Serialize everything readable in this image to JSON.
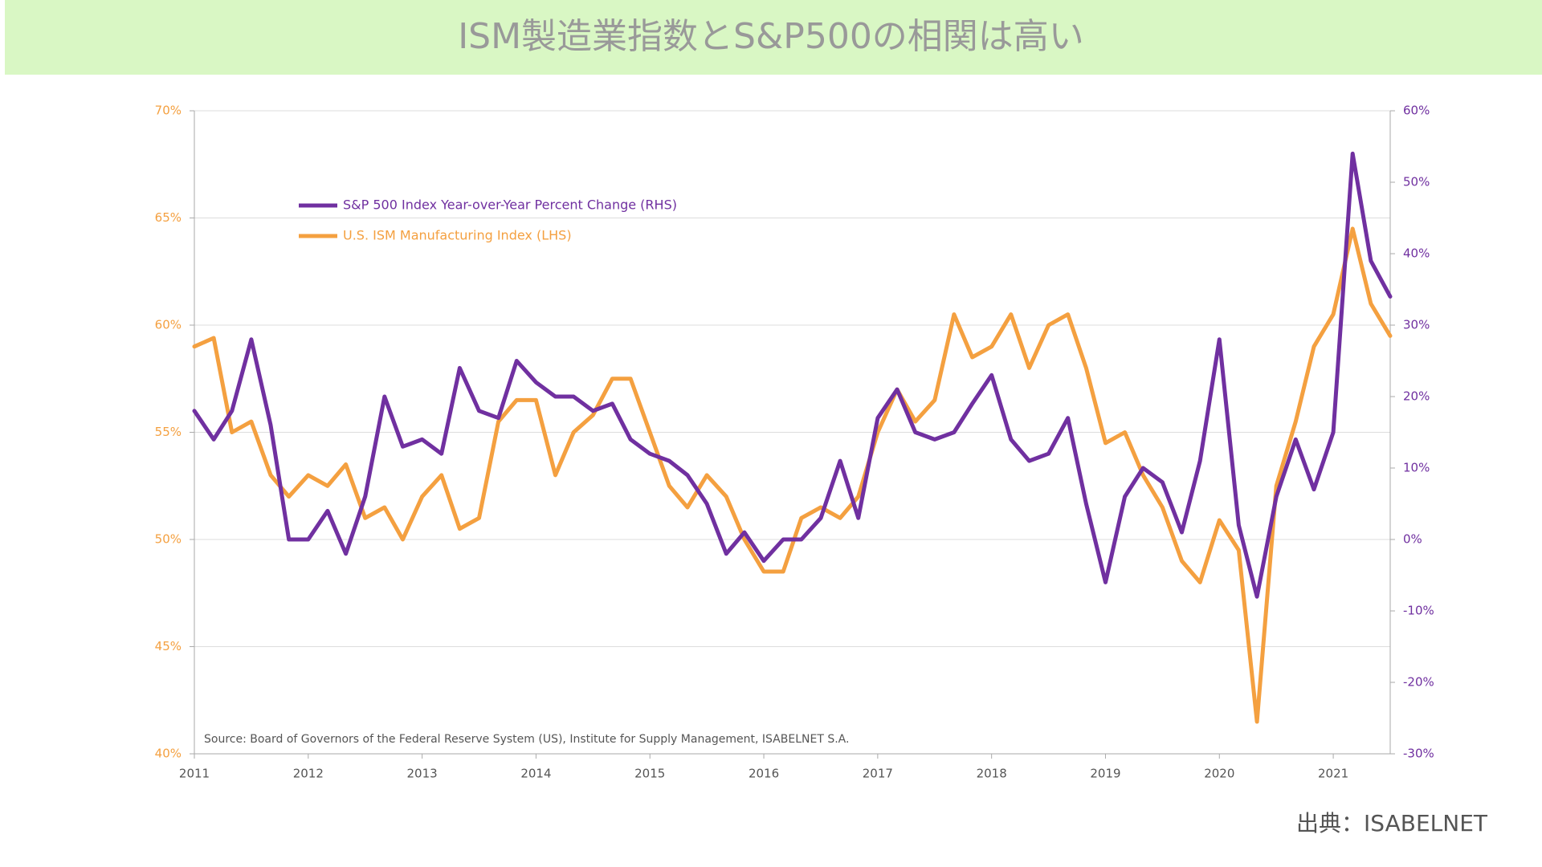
{
  "chart_data": {
    "type": "line",
    "title": "ISM製造業指数とS&P500の相関は高い",
    "source": "Source: Board of Governors of the Federal Reserve System (US), Institute for Supply Management, ISABELNET S.A.",
    "credit": "出典：ISABELNET",
    "x": [
      2011.0,
      2011.17,
      2011.33,
      2011.5,
      2011.67,
      2011.83,
      2012.0,
      2012.17,
      2012.33,
      2012.5,
      2012.67,
      2012.83,
      2013.0,
      2013.17,
      2013.33,
      2013.5,
      2013.67,
      2013.83,
      2014.0,
      2014.17,
      2014.33,
      2014.5,
      2014.67,
      2014.83,
      2015.0,
      2015.17,
      2015.33,
      2015.5,
      2015.67,
      2015.83,
      2016.0,
      2016.17,
      2016.33,
      2016.5,
      2016.67,
      2016.83,
      2017.0,
      2017.17,
      2017.33,
      2017.5,
      2017.67,
      2017.83,
      2018.0,
      2018.17,
      2018.33,
      2018.5,
      2018.67,
      2018.83,
      2019.0,
      2019.17,
      2019.33,
      2019.5,
      2019.67,
      2019.83,
      2020.0,
      2020.17,
      2020.33,
      2020.5,
      2020.67,
      2020.83,
      2021.0,
      2021.17,
      2021.33,
      2021.5
    ],
    "series": [
      {
        "name": "S&P 500 Index Year-over-Year Percent Change (RHS)",
        "color": "#7030a0",
        "axis": "y2",
        "values": [
          18,
          14,
          18,
          28,
          16,
          0,
          0,
          4,
          -2,
          6,
          20,
          13,
          14,
          12,
          24,
          18,
          17,
          25,
          22,
          20,
          20,
          18,
          19,
          14,
          12,
          11,
          9,
          5,
          -2,
          1,
          -3,
          0,
          0,
          3,
          11,
          3,
          17,
          21,
          15,
          14,
          15,
          19,
          23,
          14,
          11,
          12,
          17,
          5,
          -6,
          6,
          10,
          8,
          1,
          11,
          28,
          2,
          -8,
          6,
          14,
          7,
          15,
          54,
          39,
          34
        ]
      },
      {
        "name": "U.S. ISM Manufacturing Index (LHS)",
        "color": "#f4a040",
        "values": [
          59.0,
          59.4,
          55.0,
          55.5,
          53.0,
          52.0,
          53.0,
          52.5,
          53.5,
          51.0,
          51.5,
          50.0,
          52.0,
          53.0,
          50.5,
          51.0,
          55.5,
          56.5,
          56.5,
          53.0,
          55.0,
          55.8,
          57.5,
          57.5,
          55.0,
          52.5,
          51.5,
          53.0,
          52.0,
          50.0,
          48.5,
          48.5,
          51.0,
          51.5,
          51.0,
          52.0,
          55.0,
          57.0,
          55.5,
          56.5,
          60.5,
          58.5,
          59.0,
          60.5,
          58.0,
          60.0,
          60.5,
          58.0,
          54.5,
          55.0,
          53.0,
          51.5,
          49.0,
          48.0,
          50.9,
          49.5,
          41.5,
          52.5,
          55.5,
          59.0,
          60.5,
          64.5,
          61.0,
          59.5
        ]
      }
    ],
    "xlim": [
      2011,
      2021.5
    ],
    "xticks": [
      2011,
      2012,
      2013,
      2014,
      2015,
      2016,
      2017,
      2018,
      2019,
      2020,
      2021
    ],
    "ylim": [
      40,
      70
    ],
    "yticks": [
      {
        "value": 40,
        "label": "40%"
      },
      {
        "value": 45,
        "label": "45%"
      },
      {
        "value": 50,
        "label": "50%"
      },
      {
        "value": 55,
        "label": "55%"
      },
      {
        "value": 60,
        "label": "60%"
      },
      {
        "value": 65,
        "label": "65%"
      },
      {
        "value": 70,
        "label": "70%"
      }
    ],
    "y2lim": [
      -30,
      60
    ],
    "y2ticks": [
      {
        "value": -30,
        "label": "-30%"
      },
      {
        "value": -20,
        "label": "-20%"
      },
      {
        "value": -10,
        "label": "-10%"
      },
      {
        "value": 0,
        "label": "0%"
      },
      {
        "value": 10,
        "label": "10%"
      },
      {
        "value": 20,
        "label": "20%"
      },
      {
        "value": 30,
        "label": "30%"
      },
      {
        "value": 40,
        "label": "40%"
      },
      {
        "value": 50,
        "label": "50%"
      },
      {
        "value": 60,
        "label": "60%"
      }
    ],
    "grid": true
  }
}
